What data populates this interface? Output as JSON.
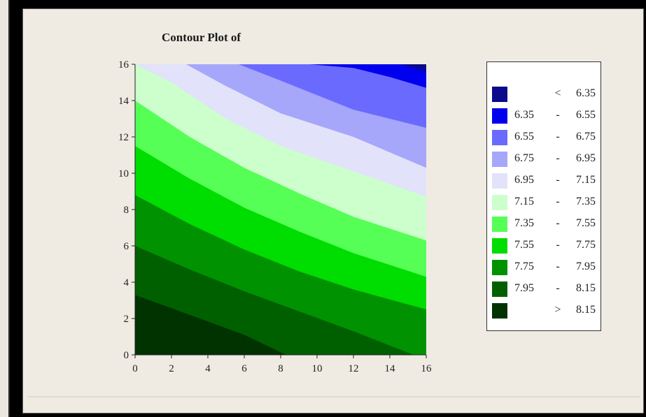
{
  "chart_data": {
    "type": "contour",
    "title": "Contour Plot of",
    "xlabel": "",
    "ylabel": "",
    "xlim": [
      0,
      16
    ],
    "ylim": [
      0,
      16
    ],
    "x_ticks": [
      0,
      2,
      4,
      6,
      8,
      10,
      12,
      14,
      16
    ],
    "y_ticks": [
      0,
      2,
      4,
      6,
      8,
      10,
      12,
      14,
      16
    ],
    "levels": [
      {
        "lo": "",
        "op": "<",
        "hi": "6.35",
        "color": "#0a0a8c"
      },
      {
        "lo": "6.35",
        "op": "-",
        "hi": "6.55",
        "color": "#0000ee"
      },
      {
        "lo": "6.55",
        "op": "-",
        "hi": "6.75",
        "color": "#6a6aff"
      },
      {
        "lo": "6.75",
        "op": "-",
        "hi": "6.95",
        "color": "#a6a6fa"
      },
      {
        "lo": "6.95",
        "op": "-",
        "hi": "7.15",
        "color": "#e2e2fa"
      },
      {
        "lo": "7.15",
        "op": "-",
        "hi": "7.35",
        "color": "#ccffcc"
      },
      {
        "lo": "7.35",
        "op": "-",
        "hi": "7.55",
        "color": "#55ff55"
      },
      {
        "lo": "7.55",
        "op": "-",
        "hi": "7.75",
        "color": "#00dd00"
      },
      {
        "lo": "7.75",
        "op": "-",
        "hi": "7.95",
        "color": "#009200"
      },
      {
        "lo": "7.95",
        "op": "-",
        "hi": "8.15",
        "color": "#006000"
      },
      {
        "lo": "",
        "op": ">",
        "hi": "8.15",
        "color": "#003300"
      }
    ],
    "contour_lines": [
      {
        "value": 8.15,
        "points": [
          [
            0,
            3.3
          ],
          [
            3,
            2.2
          ],
          [
            6,
            1.1
          ],
          [
            8.3,
            0
          ]
        ]
      },
      {
        "value": 7.95,
        "points": [
          [
            0,
            6.0
          ],
          [
            3,
            4.7
          ],
          [
            6,
            3.5
          ],
          [
            9,
            2.4
          ],
          [
            12,
            1.3
          ],
          [
            15.3,
            0
          ]
        ]
      },
      {
        "value": 7.75,
        "points": [
          [
            0,
            8.8
          ],
          [
            3,
            7.2
          ],
          [
            6,
            5.8
          ],
          [
            9,
            4.6
          ],
          [
            12,
            3.6
          ],
          [
            16,
            2.5
          ]
        ]
      },
      {
        "value": 7.55,
        "points": [
          [
            0,
            11.5
          ],
          [
            3,
            9.7
          ],
          [
            6,
            8.1
          ],
          [
            9,
            6.8
          ],
          [
            12,
            5.6
          ],
          [
            16,
            4.3
          ]
        ]
      },
      {
        "value": 7.35,
        "points": [
          [
            0,
            14.0
          ],
          [
            3,
            12.0
          ],
          [
            6,
            10.3
          ],
          [
            9,
            8.9
          ],
          [
            12,
            7.6
          ],
          [
            16,
            6.3
          ]
        ]
      },
      {
        "value": 7.15,
        "points": [
          [
            0,
            16.0
          ],
          [
            2,
            15.0
          ],
          [
            5,
            13.0
          ],
          [
            8,
            11.5
          ],
          [
            12,
            10.1
          ],
          [
            16,
            8.7
          ]
        ]
      },
      {
        "value": 6.95,
        "points": [
          [
            2.8,
            16.0
          ],
          [
            5,
            14.8
          ],
          [
            8,
            13.3
          ],
          [
            12,
            12.0
          ],
          [
            16,
            10.3
          ]
        ]
      },
      {
        "value": 6.75,
        "points": [
          [
            5.7,
            16.0
          ],
          [
            8,
            15.1
          ],
          [
            12,
            13.5
          ],
          [
            16,
            12.5
          ]
        ]
      },
      {
        "value": 6.55,
        "points": [
          [
            9.6,
            16.0
          ],
          [
            12,
            15.8
          ],
          [
            14,
            15.3
          ],
          [
            16,
            14.7
          ]
        ]
      },
      {
        "value": 6.35,
        "points": [
          [
            14.6,
            16.0
          ],
          [
            16,
            15.6
          ]
        ]
      }
    ]
  }
}
